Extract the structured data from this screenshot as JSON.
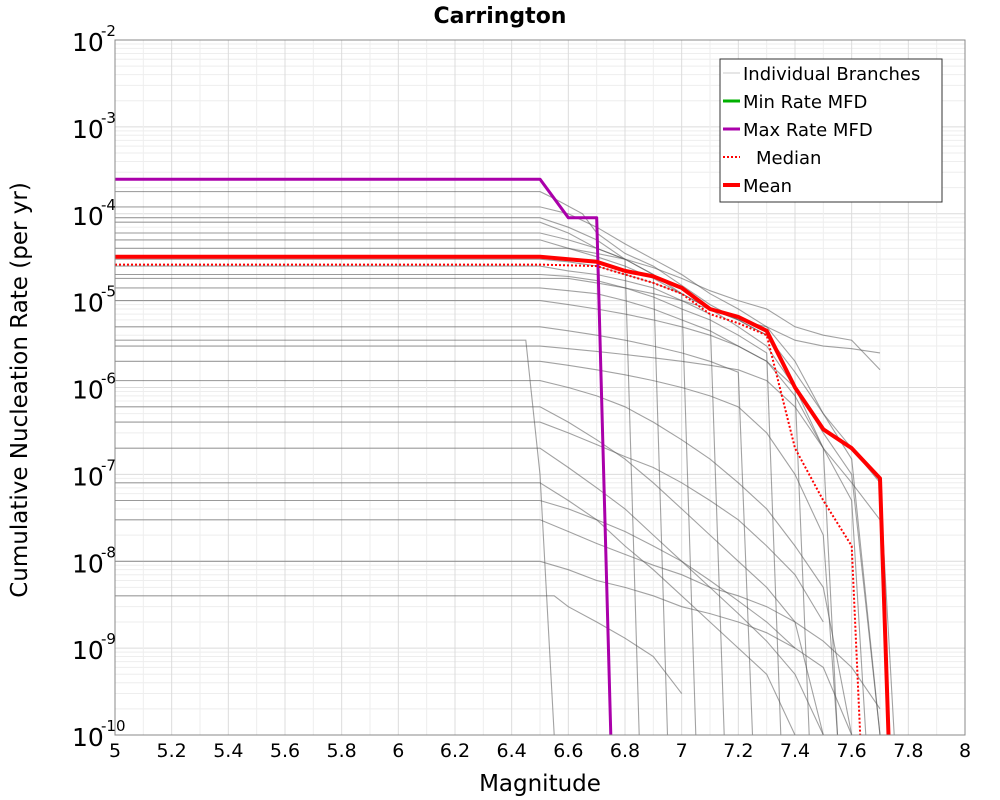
{
  "chart_data": {
    "type": "line",
    "title": "Carrington",
    "xlabel": "Magnitude",
    "ylabel": "Cumulative Nucleation Rate (per yr)",
    "xlim": [
      5,
      8
    ],
    "ylim": [
      1e-10,
      0.01
    ],
    "y_scale": "log",
    "grid": true,
    "legend_position": "top-right",
    "x_ticks": [
      "5",
      "5.2",
      "5.4",
      "5.6",
      "5.8",
      "6",
      "6.2",
      "6.4",
      "6.6",
      "6.8",
      "7",
      "7.2",
      "7.4",
      "7.6",
      "7.8",
      "8"
    ],
    "y_ticks": [
      {
        "base": "10",
        "exp": "-10"
      },
      {
        "base": "10",
        "exp": "-9"
      },
      {
        "base": "10",
        "exp": "-8"
      },
      {
        "base": "10",
        "exp": "-7"
      },
      {
        "base": "10",
        "exp": "-6"
      },
      {
        "base": "10",
        "exp": "-5"
      },
      {
        "base": "10",
        "exp": "-4"
      },
      {
        "base": "10",
        "exp": "-3"
      },
      {
        "base": "10",
        "exp": "-2"
      }
    ],
    "series": [
      {
        "name": "Individual Branches",
        "color": "#555555",
        "style": "thin",
        "note_values": "representative subset of logic-tree branches",
        "branches": [
          {
            "x": [
              5,
              6.5,
              6.55,
              6.65,
              6.7,
              6.8,
              6.9,
              7.0,
              7.1,
              7.2,
              7.3,
              7.4,
              7.5,
              7.6,
              7.7
            ],
            "y": [
              0.00018,
              0.00018,
              0.00015,
              0.0001,
              6e-05,
              3.5e-05,
              2.5e-05,
              1.5e-05,
              9e-06,
              6e-06,
              4e-06,
              1e-06,
              3e-07,
              1e-07,
              1e-10
            ]
          },
          {
            "x": [
              5,
              6.5,
              6.6,
              6.7,
              6.8,
              6.9,
              7.0,
              7.1,
              7.2,
              7.3,
              7.4,
              7.5,
              7.6,
              7.7
            ],
            "y": [
              0.00012,
              0.00012,
              0.0001,
              7e-05,
              4.5e-05,
              3e-05,
              2e-05,
              1.2e-05,
              8e-06,
              5e-06,
              2e-06,
              5e-07,
              1.5e-07,
              1e-10
            ]
          },
          {
            "x": [
              5,
              6.5,
              6.6,
              6.7,
              6.8,
              6.9,
              7.0,
              7.05
            ],
            "y": [
              8e-05,
              8e-05,
              6e-05,
              4e-05,
              3e-05,
              2e-05,
              1.2e-05,
              1e-10
            ]
          },
          {
            "x": [
              5,
              6.5,
              6.6,
              6.7,
              6.8,
              6.9,
              7.0,
              7.1,
              7.2,
              7.3,
              7.4,
              7.5,
              7.55
            ],
            "y": [
              5e-05,
              5e-05,
              4e-05,
              3.2e-05,
              2.5e-05,
              1.8e-05,
              1.2e-05,
              8e-06,
              5e-06,
              3e-06,
              1e-06,
              2e-07,
              1e-10
            ]
          },
          {
            "x": [
              5,
              6.5,
              6.6,
              6.7,
              6.8,
              6.9,
              7.0,
              7.1,
              7.2,
              7.3,
              7.4,
              7.5,
              7.6,
              7.7,
              7.75
            ],
            "y": [
              3e-05,
              3e-05,
              2.8e-05,
              2.5e-05,
              2e-05,
              1.6e-05,
              1.2e-05,
              8e-06,
              6e-06,
              4e-06,
              1.5e-06,
              5e-07,
              2e-07,
              8e-08,
              1e-10
            ]
          },
          {
            "x": [
              5,
              6.5,
              6.6,
              6.7,
              6.8,
              6.9,
              7.0,
              7.1,
              7.2,
              7.3,
              7.35
            ],
            "y": [
              2e-05,
              2e-05,
              1.9e-05,
              1.7e-05,
              1.4e-05,
              1.1e-05,
              8e-06,
              6e-06,
              4e-06,
              2.5e-06,
              1e-10
            ]
          },
          {
            "x": [
              5,
              6.5,
              6.6,
              6.7,
              6.8,
              6.9,
              7.0,
              7.1,
              7.2,
              7.3,
              7.4,
              7.5,
              7.6,
              7.65
            ],
            "y": [
              1.4e-05,
              1.4e-05,
              1.3e-05,
              1.2e-05,
              1e-05,
              8e-06,
              6e-06,
              4.5e-06,
              3e-06,
              2e-06,
              8e-07,
              2e-07,
              5e-08,
              1e-10
            ]
          },
          {
            "x": [
              5,
              6.5,
              6.6,
              6.7,
              6.8,
              6.9,
              7.0,
              7.1,
              7.2,
              7.25
            ],
            "y": [
              5e-06,
              5e-06,
              4.5e-06,
              4e-06,
              3.5e-06,
              3e-06,
              2.5e-06,
              2e-06,
              1.5e-06,
              1e-10
            ]
          },
          {
            "x": [
              5,
              6.5,
              6.6,
              6.7,
              6.8,
              6.9,
              7.0,
              7.1,
              7.2,
              7.3,
              7.4,
              7.5,
              7.6,
              7.7
            ],
            "y": [
              3e-06,
              3e-06,
              2.8e-06,
              2.6e-06,
              2.4e-06,
              2.2e-06,
              2e-06,
              1.8e-06,
              1.6e-06,
              1.2e-06,
              6e-07,
              2e-07,
              8e-08,
              3e-08
            ]
          },
          {
            "x": [
              5,
              6.5,
              6.6,
              6.7,
              6.8,
              6.9,
              7.0,
              7.1,
              7.2,
              7.3,
              7.4,
              7.5,
              7.55
            ],
            "y": [
              2e-06,
              2e-06,
              1.8e-06,
              1.6e-06,
              1.4e-06,
              1.2e-06,
              1e-06,
              8e-07,
              6e-07,
              3e-07,
              1e-07,
              2e-08,
              1e-10
            ]
          },
          {
            "x": [
              5,
              6.5,
              6.6,
              6.7,
              6.8,
              6.9,
              7.0,
              7.1,
              7.2,
              7.3,
              7.4,
              7.5,
              7.6
            ],
            "y": [
              1.2e-06,
              1.2e-06,
              1e-06,
              8e-07,
              6e-07,
              4e-07,
              2.5e-07,
              1.5e-07,
              8e-08,
              4e-08,
              1.5e-08,
              5e-09,
              1e-10
            ]
          },
          {
            "x": [
              5,
              6.5,
              6.6,
              6.7,
              6.8,
              6.9,
              7.0,
              7.1,
              7.2,
              7.3,
              7.4,
              7.5
            ],
            "y": [
              6e-07,
              6e-07,
              4e-07,
              2.5e-07,
              1.5e-07,
              8e-08,
              4e-08,
              2e-08,
              1e-08,
              5e-09,
              2e-09,
              1e-10
            ]
          },
          {
            "x": [
              5,
              6.5,
              6.6,
              6.7,
              6.8,
              6.9,
              7.0,
              7.1,
              7.2,
              7.3,
              7.4,
              7.5
            ],
            "y": [
              2e-07,
              2e-07,
              1.2e-07,
              7e-08,
              4e-08,
              2e-08,
              1e-08,
              5e-09,
              2.5e-09,
              1.2e-09,
              5e-10,
              1e-10
            ]
          },
          {
            "x": [
              5,
              6.5,
              6.6,
              6.7,
              6.8,
              6.9,
              7.0,
              7.1,
              7.2,
              7.3,
              7.4
            ],
            "y": [
              8e-08,
              8e-08,
              5e-08,
              3e-08,
              1.5e-08,
              8e-09,
              4e-09,
              2e-09,
              1e-09,
              5e-10,
              1e-10
            ]
          },
          {
            "x": [
              5,
              6.5,
              6.6,
              6.7,
              6.8,
              6.9,
              7.0,
              7.1,
              7.2,
              7.3,
              7.4,
              7.5,
              7.6,
              7.7
            ],
            "y": [
              3e-08,
              3e-08,
              2.2e-08,
              1.6e-08,
              1.2e-08,
              9e-09,
              7e-09,
              5e-09,
              4e-09,
              3e-09,
              2e-09,
              1.2e-09,
              6e-10,
              2e-10
            ]
          },
          {
            "x": [
              5,
              6.5,
              6.6,
              6.7,
              6.8,
              6.9,
              7.0,
              7.1,
              7.2,
              7.3,
              7.4,
              7.5,
              7.6
            ],
            "y": [
              1e-08,
              1e-08,
              8e-09,
              6e-09,
              5e-09,
              4e-09,
              3e-09,
              2.5e-09,
              2e-09,
              1.5e-09,
              1e-09,
              6e-10,
              1e-10
            ]
          },
          {
            "x": [
              5,
              6.45,
              6.5,
              6.55
            ],
            "y": [
              3.5e-06,
              3.5e-06,
              1e-07,
              1e-10
            ]
          },
          {
            "x": [
              5,
              6.55,
              6.6,
              6.7,
              6.8,
              6.9,
              7.0
            ],
            "y": [
              4e-09,
              4e-09,
              3e-09,
              2e-09,
              1.3e-09,
              8e-10,
              3e-10
            ]
          },
          {
            "x": [
              5,
              6.6,
              6.7,
              6.8,
              6.9,
              7.0,
              7.1,
              7.2,
              7.3,
              7.4,
              7.5,
              7.6,
              7.7
            ],
            "y": [
              1.8e-05,
              1.8e-05,
              1.6e-05,
              1.4e-05,
              1.2e-05,
              1e-05,
              8e-06,
              6e-06,
              5e-06,
              3.5e-06,
              3e-06,
              2.8e-06,
              2.5e-06
            ]
          },
          {
            "x": [
              5,
              6.6,
              6.7,
              6.8,
              6.9,
              7.0,
              7.1,
              7.2,
              7.3,
              7.4,
              7.5,
              7.6,
              7.7
            ],
            "y": [
              4e-05,
              4e-05,
              3.5e-05,
              3e-05,
              2.4e-05,
              1.8e-05,
              1.3e-05,
              1e-05,
              8e-06,
              5e-06,
              4e-06,
              3.5e-06,
              1.6e-06
            ]
          },
          {
            "x": [
              5,
              6.5,
              6.6,
              6.7,
              6.8,
              6.85
            ],
            "y": [
              9e-05,
              9e-05,
              7e-05,
              5e-05,
              3e-05,
              1e-10
            ]
          },
          {
            "x": [
              5,
              6.5,
              6.6,
              6.7,
              6.8,
              6.9,
              6.95
            ],
            "y": [
              6e-05,
              6e-05,
              5e-05,
              4e-05,
              3e-05,
              2e-05,
              1e-10
            ]
          },
          {
            "x": [
              5,
              6.5,
              6.6,
              6.7,
              6.8,
              6.9,
              7.0,
              7.1,
              7.15
            ],
            "y": [
              2.5e-05,
              2.5e-05,
              2.2e-05,
              2e-05,
              1.7e-05,
              1.4e-05,
              1e-05,
              7e-06,
              1e-10
            ]
          },
          {
            "x": [
              5,
              6.5,
              6.6,
              6.7,
              6.8,
              6.9,
              7.0,
              7.1,
              7.2,
              7.3,
              7.4,
              7.45
            ],
            "y": [
              1e-05,
              1e-05,
              9e-06,
              8e-06,
              7e-06,
              6e-06,
              5e-06,
              4e-06,
              3e-06,
              2e-06,
              1e-06,
              1e-10
            ]
          },
          {
            "x": [
              5,
              6.5,
              6.6,
              6.7,
              6.8,
              6.9,
              7.0,
              7.1,
              7.2,
              7.3,
              7.4,
              7.5
            ],
            "y": [
              4e-07,
              4e-07,
              3e-07,
              2.2e-07,
              1.6e-07,
              1.2e-07,
              8e-08,
              5e-08,
              3e-08,
              1.5e-08,
              7e-09,
              2e-09
            ]
          },
          {
            "x": [
              5,
              6.5,
              6.6,
              6.7,
              6.8,
              6.9,
              7.0,
              7.1,
              7.2,
              7.3,
              7.4
            ],
            "y": [
              5e-08,
              5e-08,
              4e-08,
              3e-08,
              2.2e-08,
              1.5e-08,
              1e-08,
              6e-09,
              3.5e-09,
              2e-09,
              1e-09
            ]
          }
        ]
      },
      {
        "name": "Min Rate MFD",
        "color": "#00b000",
        "x": [],
        "y": []
      },
      {
        "name": "Max Rate MFD",
        "color": "#aa00aa",
        "x": [
          5,
          6.5,
          6.6,
          6.7,
          6.7,
          6.75
        ],
        "y": [
          0.00025,
          0.00025,
          9e-05,
          9e-05,
          9e-05,
          1e-10
        ]
      },
      {
        "name": "Median",
        "color": "#ff0000",
        "style": "dotted",
        "x": [
          5,
          6.5,
          6.7,
          6.8,
          6.9,
          7.0,
          7.1,
          7.2,
          7.3,
          7.4,
          7.5,
          7.6,
          7.63
        ],
        "y": [
          2.6e-05,
          2.6e-05,
          2.5e-05,
          2e-05,
          1.6e-05,
          1.2e-05,
          7e-06,
          5.5e-06,
          4e-06,
          2e-07,
          5e-08,
          1.5e-08,
          1e-10
        ]
      },
      {
        "name": "Mean",
        "color": "#ff0000",
        "style": "thick",
        "x": [
          5,
          6.5,
          6.7,
          6.8,
          6.9,
          7.0,
          7.1,
          7.2,
          7.3,
          7.4,
          7.5,
          7.6,
          7.7,
          7.73
        ],
        "y": [
          3.2e-05,
          3.2e-05,
          2.8e-05,
          2.2e-05,
          1.9e-05,
          1.4e-05,
          8e-06,
          6.5e-06,
          4.5e-06,
          1e-06,
          3.3e-07,
          2e-07,
          9e-08,
          1e-10
        ]
      }
    ]
  }
}
